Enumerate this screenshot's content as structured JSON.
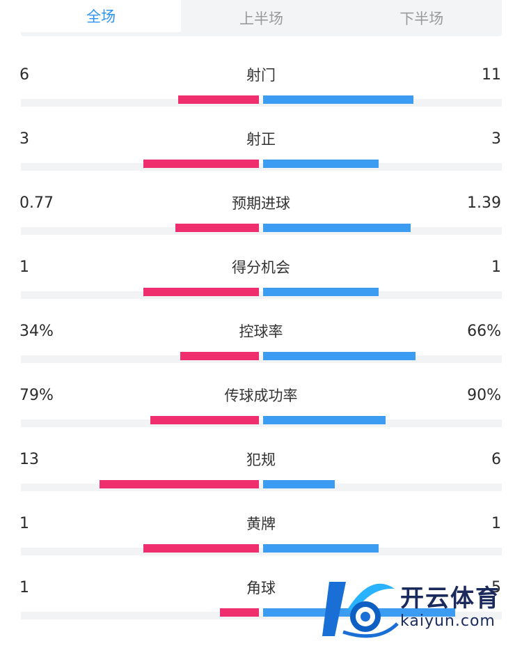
{
  "tabs": [
    {
      "label": "全场",
      "active": true
    },
    {
      "label": "上半场",
      "active": false
    },
    {
      "label": "下半场",
      "active": false
    }
  ],
  "colors": {
    "home": "#ee2e6d",
    "away": "#3c9cf2",
    "active_tab": "#2b93f2"
  },
  "stats": [
    {
      "label": "射门",
      "home": "6",
      "away": "11",
      "home_fraction": 0.35,
      "away_fraction": 0.65
    },
    {
      "label": "射正",
      "home": "3",
      "away": "3",
      "home_fraction": 0.5,
      "away_fraction": 0.5
    },
    {
      "label": "预期进球",
      "home": "0.77",
      "away": "1.39",
      "home_fraction": 0.36,
      "away_fraction": 0.64
    },
    {
      "label": "得分机会",
      "home": "1",
      "away": "1",
      "home_fraction": 0.5,
      "away_fraction": 0.5
    },
    {
      "label": "控球率",
      "home": "34%",
      "away": "66%",
      "home_fraction": 0.34,
      "away_fraction": 0.66
    },
    {
      "label": "传球成功率",
      "home": "79%",
      "away": "90%",
      "home_fraction": 0.47,
      "away_fraction": 0.53
    },
    {
      "label": "犯规",
      "home": "13",
      "away": "6",
      "home_fraction": 0.69,
      "away_fraction": 0.31
    },
    {
      "label": "黄牌",
      "home": "1",
      "away": "1",
      "home_fraction": 0.5,
      "away_fraction": 0.5
    },
    {
      "label": "角球",
      "home": "1",
      "away": "5",
      "home_fraction": 0.17,
      "away_fraction": 0.83
    }
  ],
  "watermark": {
    "name": "开云体育",
    "url": "kaiyun.com",
    "icon": "kaiyun-logo-icon"
  }
}
